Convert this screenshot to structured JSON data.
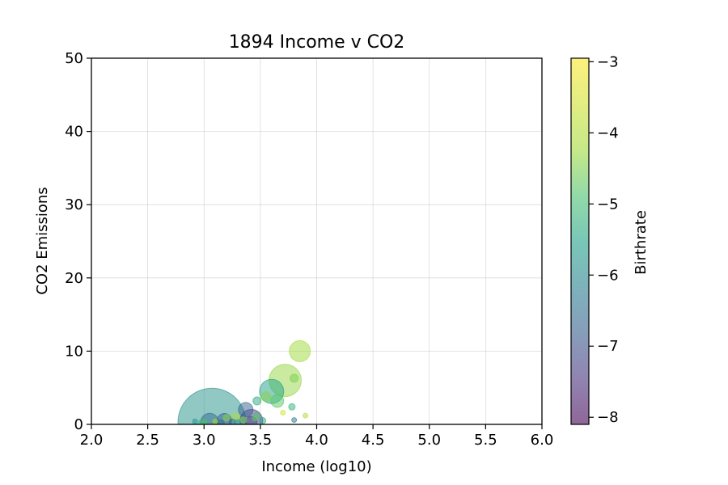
{
  "chart_data": {
    "type": "scatter",
    "title": "1894 Income v CO2",
    "xlabel": "Income (log10)",
    "ylabel": "CO2 Emissions",
    "xlim": [
      2.0,
      6.0
    ],
    "ylim": [
      0,
      50
    ],
    "xticks": [
      "2.0",
      "2.5",
      "3.0",
      "3.5",
      "4.0",
      "4.5",
      "5.0",
      "5.5",
      "6.0"
    ],
    "yticks": [
      "0",
      "10",
      "20",
      "30",
      "40",
      "50"
    ],
    "grid": true,
    "colorbar": {
      "label": "Birthrate",
      "range": [
        -8.1,
        -2.95
      ],
      "ticks": [
        "−3",
        "−4",
        "−5",
        "−6",
        "−7",
        "−8"
      ],
      "colormap": "viridis"
    },
    "marker_alpha": 0.5,
    "points": [
      {
        "x": 3.07,
        "y": 0.3,
        "size": 42,
        "c": -5.5
      },
      {
        "x": 3.05,
        "y": 0.3,
        "size": 11,
        "c": -6.3
      },
      {
        "x": 3.18,
        "y": 0.5,
        "size": 9,
        "c": -6.6
      },
      {
        "x": 3.42,
        "y": 0.5,
        "size": 14,
        "c": -7.3
      },
      {
        "x": 3.37,
        "y": 2.0,
        "size": 9,
        "c": -6.5
      },
      {
        "x": 3.42,
        "y": 0.3,
        "size": 7,
        "c": -6.9
      },
      {
        "x": 3.6,
        "y": 4.5,
        "size": 15,
        "c": -5.2
      },
      {
        "x": 3.72,
        "y": 6.0,
        "size": 20,
        "c": -3.8
      },
      {
        "x": 3.85,
        "y": 10.0,
        "size": 13,
        "c": -3.7
      },
      {
        "x": 3.8,
        "y": 6.3,
        "size": 5,
        "c": -4.0
      },
      {
        "x": 3.55,
        "y": 3.8,
        "size": 6,
        "c": -3.9
      },
      {
        "x": 3.65,
        "y": 3.2,
        "size": 8,
        "c": -4.3
      },
      {
        "x": 3.47,
        "y": 3.2,
        "size": 5,
        "c": -5.0
      },
      {
        "x": 3.78,
        "y": 2.4,
        "size": 4,
        "c": -4.8
      },
      {
        "x": 3.7,
        "y": 1.6,
        "size": 3,
        "c": -3.3
      },
      {
        "x": 3.9,
        "y": 1.2,
        "size": 3,
        "c": -3.6
      },
      {
        "x": 3.8,
        "y": 0.6,
        "size": 3,
        "c": -6.1
      },
      {
        "x": 3.47,
        "y": 1.2,
        "size": 4,
        "c": -4.5
      },
      {
        "x": 3.28,
        "y": 1.0,
        "size": 5,
        "c": -3.6
      },
      {
        "x": 3.2,
        "y": 0.9,
        "size": 4,
        "c": -3.9
      },
      {
        "x": 3.15,
        "y": 0.2,
        "size": 4,
        "c": -6.2
      },
      {
        "x": 2.92,
        "y": 0.4,
        "size": 3,
        "c": -5.4
      },
      {
        "x": 2.98,
        "y": 0.2,
        "size": 4,
        "c": -4.8
      },
      {
        "x": 3.0,
        "y": 0.3,
        "size": 3,
        "c": -4.4
      },
      {
        "x": 3.25,
        "y": 0.3,
        "size": 4,
        "c": -6.4
      },
      {
        "x": 3.3,
        "y": 0.2,
        "size": 4,
        "c": -5.6
      },
      {
        "x": 3.35,
        "y": 0.6,
        "size": 4,
        "c": -4.0
      },
      {
        "x": 3.52,
        "y": 0.5,
        "size": 4,
        "c": -5.0
      },
      {
        "x": 3.1,
        "y": 0.4,
        "size": 3,
        "c": -3.6
      },
      {
        "x": 3.45,
        "y": 0.8,
        "size": 3,
        "c": -4.2
      }
    ]
  }
}
